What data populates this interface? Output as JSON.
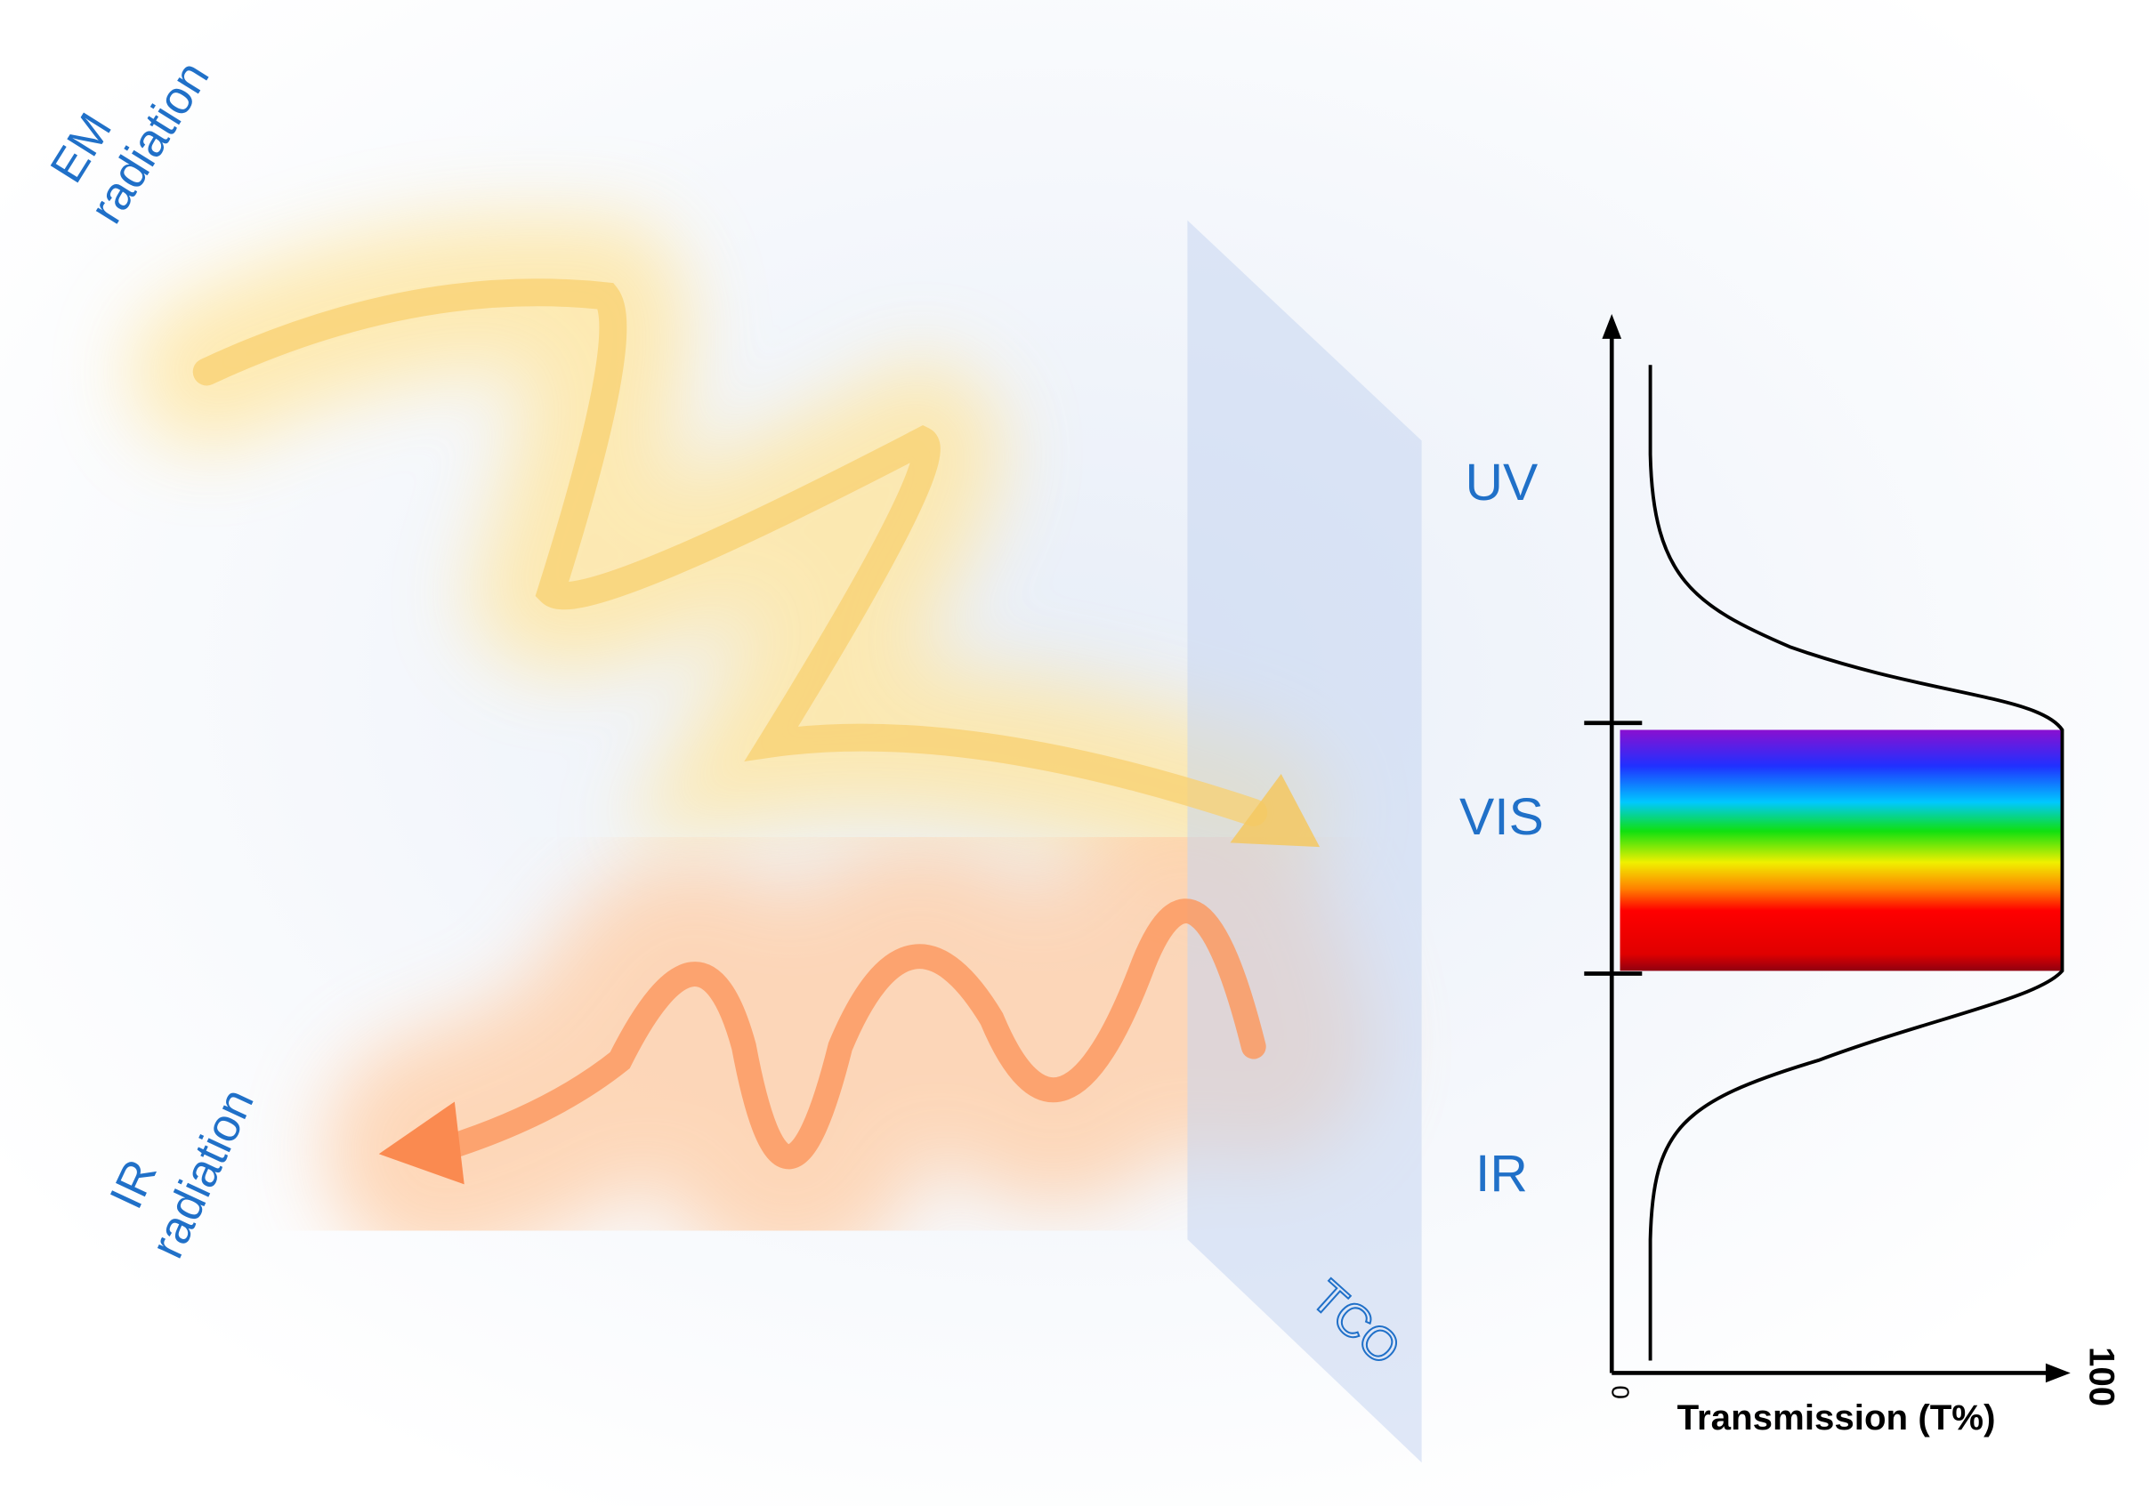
{
  "em_label": [
    "EM",
    "radiation"
  ],
  "ir_radiation_label": [
    "IR",
    "radiation"
  ],
  "pane_label": "TCO",
  "bands": {
    "uv": "UV",
    "vis": "VIS",
    "ir": "IR"
  },
  "axis": {
    "title": "Transmission (T%)",
    "min_label": "0",
    "max_label": "100"
  }
}
